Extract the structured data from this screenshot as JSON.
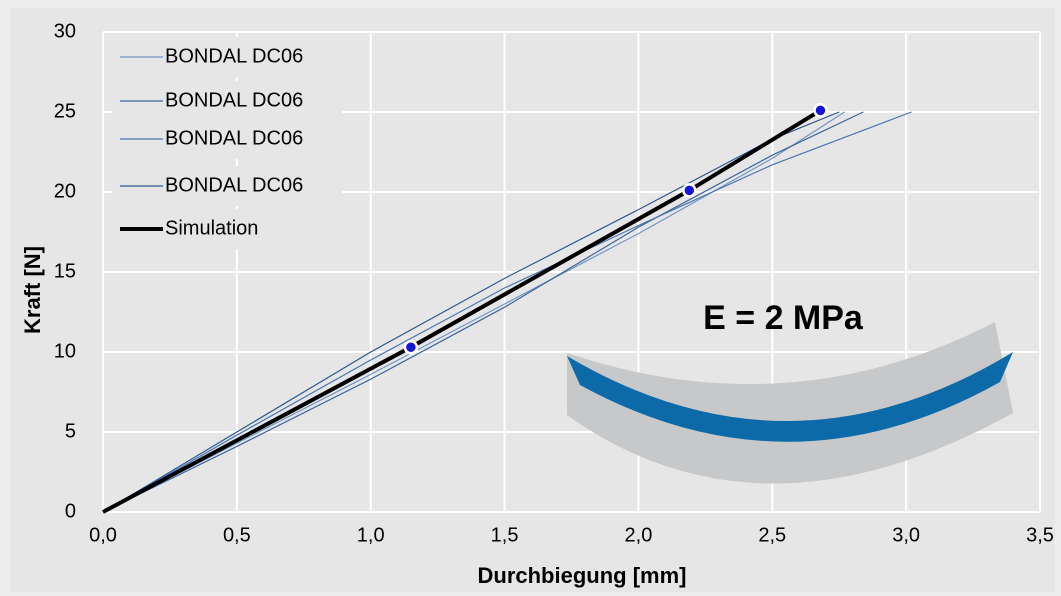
{
  "chart_data": {
    "type": "line",
    "xlabel": "Durchbiegung [mm]",
    "ylabel": "Kraft [N]",
    "annotation": "E = 2 MPa",
    "xlim": [
      0,
      3.5
    ],
    "xticks": [
      {
        "value": 0,
        "label": "0,0"
      },
      {
        "value": 0.5,
        "label": "0,5"
      },
      {
        "value": 1,
        "label": "1,0"
      },
      {
        "value": 1.5,
        "label": "1,5"
      },
      {
        "value": 2,
        "label": "2,0"
      },
      {
        "value": 2.5,
        "label": "2,5"
      },
      {
        "value": 3,
        "label": "3,0"
      },
      {
        "value": 3.5,
        "label": "3,5"
      }
    ],
    "ylim": [
      0,
      30
    ],
    "yticks": [
      0,
      5,
      10,
      15,
      20,
      25,
      30
    ],
    "grid": true,
    "legend": "upper left",
    "series": [
      {
        "name": "BONDAL DC06",
        "color": "#7393c4",
        "width": 1.2,
        "x": [
          0,
          0.5,
          1.0,
          1.5,
          2.0,
          2.5,
          2.77
        ],
        "values": [
          0,
          4.3,
          8.6,
          13.0,
          17.4,
          22.1,
          25
        ]
      },
      {
        "name": "BONDAL DC06",
        "color": "#3d669c",
        "width": 1.2,
        "x": [
          0,
          0.5,
          1.0,
          1.5,
          2.0,
          2.5,
          2.84
        ],
        "values": [
          0,
          4.1,
          8.3,
          12.8,
          17.8,
          22.3,
          25
        ]
      },
      {
        "name": "BONDAL DC06",
        "color": "#4b75b3",
        "width": 1.2,
        "x": [
          0,
          0.5,
          1.0,
          1.5,
          2.0,
          2.5,
          3.02
        ],
        "values": [
          0,
          4.8,
          9.5,
          14.0,
          17.9,
          21.7,
          25
        ]
      },
      {
        "name": "BONDAL DC06",
        "color": "#2d5890",
        "width": 1.2,
        "x": [
          0,
          0.5,
          1.0,
          1.5,
          2.0,
          2.5,
          2.75
        ],
        "values": [
          0,
          5.0,
          10.0,
          14.6,
          18.9,
          23.3,
          25
        ]
      },
      {
        "name": "Simulation",
        "color": "#000000",
        "width": 4,
        "x": [
          0,
          1.15,
          2.19,
          2.68
        ],
        "values": [
          0,
          10.3,
          20.1,
          25.1
        ]
      }
    ],
    "points": {
      "color": "#1515d8",
      "x": [
        1.15,
        2.19,
        2.68
      ],
      "values": [
        10.3,
        20.1,
        25.1
      ]
    }
  }
}
